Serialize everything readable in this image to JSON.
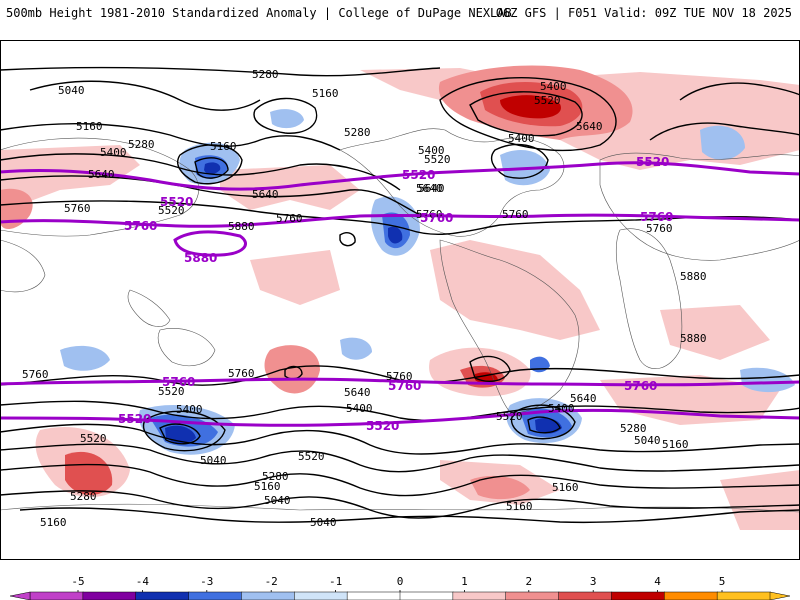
{
  "header": {
    "left": "500mb Height 1981-2010 Standardized Anomaly | College of DuPage NEXLAB",
    "right": "06Z GFS | F051 Valid: 09Z TUE NOV 18 2025"
  },
  "contour_labels": {
    "black": [
      {
        "text": "5280"
      },
      {
        "text": "5040"
      },
      {
        "text": "5160"
      },
      {
        "text": "5160"
      },
      {
        "text": "5280"
      },
      {
        "text": "5400"
      },
      {
        "text": "5280"
      },
      {
        "text": "5160"
      },
      {
        "text": "5640"
      },
      {
        "text": "5520"
      },
      {
        "text": "5760"
      },
      {
        "text": "5640"
      },
      {
        "text": "5760"
      },
      {
        "text": "5880"
      },
      {
        "text": "5400"
      },
      {
        "text": "5400"
      },
      {
        "text": "5520"
      },
      {
        "text": "5640"
      },
      {
        "text": "5400"
      },
      {
        "text": "5520"
      },
      {
        "text": "5640"
      },
      {
        "text": "5760"
      },
      {
        "text": "5760"
      },
      {
        "text": "5760"
      },
      {
        "text": "5880"
      },
      {
        "text": "5880"
      },
      {
        "text": "5760"
      },
      {
        "text": "5760"
      },
      {
        "text": "5640"
      },
      {
        "text": "5400"
      },
      {
        "text": "5400"
      },
      {
        "text": "5520"
      },
      {
        "text": "5040"
      },
      {
        "text": "5280"
      },
      {
        "text": "5160"
      },
      {
        "text": "5520"
      },
      {
        "text": "5040"
      },
      {
        "text": "5040"
      },
      {
        "text": "5760"
      },
      {
        "text": "5640"
      },
      {
        "text": "5520"
      },
      {
        "text": "5400"
      },
      {
        "text": "5280"
      },
      {
        "text": "5040"
      },
      {
        "text": "5160"
      },
      {
        "text": "5160"
      },
      {
        "text": "5160"
      },
      {
        "text": "5280"
      },
      {
        "text": "5520"
      },
      {
        "text": "5160"
      },
      {
        "text": "5640"
      }
    ],
    "purple": [
      {
        "text": "5520"
      },
      {
        "text": "5760"
      },
      {
        "text": "5880"
      },
      {
        "text": "5520"
      },
      {
        "text": "5760"
      },
      {
        "text": "5520"
      },
      {
        "text": "5760"
      },
      {
        "text": "5760"
      },
      {
        "text": "5760"
      },
      {
        "text": "5760"
      },
      {
        "text": "5520"
      },
      {
        "text": "5520"
      }
    ]
  },
  "colorbar": {
    "ticks": [
      "-5",
      "-4",
      "-3",
      "-2",
      "-1",
      "0",
      "1",
      "2",
      "3",
      "4",
      "5"
    ],
    "colors": [
      "#c040c8",
      "#8000a0",
      "#1030b0",
      "#4070e0",
      "#a0c0f0",
      "#d0e4f8",
      "#ffffff",
      "#ffffff",
      "#f8c8c8",
      "#f09090",
      "#e05050",
      "#c00000",
      "#ff8c00",
      "#ffc020"
    ]
  }
}
